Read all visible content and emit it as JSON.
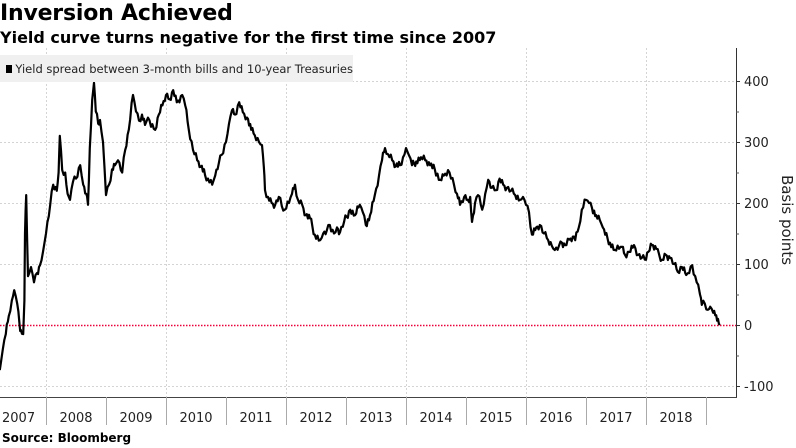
{
  "title": "Inversion Achieved",
  "subtitle": "Yield curve turns negative for the first time since 2007",
  "source": "Source: Bloomberg",
  "colors": {
    "series": "#000000",
    "zero_line": "#e8003a",
    "grid": "#d4d4d4",
    "legend_bg": "#f0f0f0"
  },
  "chart_data": {
    "type": "line",
    "title": "Inversion Achieved",
    "subtitle": "Yield curve turns negative for the first time since 2007",
    "xlabel": "",
    "ylabel": "Basis points",
    "ylim": [
      -125,
      440
    ],
    "xlim": [
      2007.23,
      2019.83
    ],
    "y_ticks": [
      "400",
      "300",
      "200",
      "100",
      "0",
      "-100"
    ],
    "y_tick_values": [
      400,
      300,
      200,
      100,
      0,
      -100
    ],
    "x_tick_labels": [
      "2007",
      "2008",
      "2009",
      "2010",
      "2011",
      "2012",
      "2013",
      "2014",
      "2015",
      "2016",
      "2017",
      "2018"
    ],
    "grid": true,
    "legend": "top-left",
    "reference_line": {
      "value": 0,
      "style": "dotted",
      "color": "#e8003a"
    },
    "series": [
      {
        "name": "Yield spread between 3-month bills and 10-year Treasuries",
        "x": [
          2007.23,
          2007.28,
          2007.33,
          2007.38,
          2007.43,
          2007.47,
          2007.52,
          2007.56,
          2007.58,
          2007.62,
          2007.64,
          2007.65,
          2007.67,
          2007.7,
          2007.75,
          2007.8,
          2007.85,
          2007.9,
          2007.95,
          2008.0,
          2008.07,
          2008.12,
          2008.18,
          2008.21,
          2008.23,
          2008.27,
          2008.32,
          2008.36,
          2008.4,
          2008.45,
          2008.5,
          2008.57,
          2008.62,
          2008.67,
          2008.7,
          2008.73,
          2008.77,
          2008.8,
          2008.83,
          2008.87,
          2008.9,
          2008.95,
          2009.0,
          2009.05,
          2009.1,
          2009.15,
          2009.2,
          2009.27,
          2009.32,
          2009.38,
          2009.45,
          2009.5,
          2009.55,
          2009.6,
          2009.65,
          2009.7,
          2009.75,
          2009.82,
          2009.88,
          2009.94,
          2010.0,
          2010.06,
          2010.12,
          2010.18,
          2010.27,
          2010.32,
          2010.38,
          2010.45,
          2010.52,
          2010.58,
          2010.65,
          2010.7,
          2010.77,
          2010.82,
          2010.88,
          2010.93,
          2011.0,
          2011.05,
          2011.1,
          2011.15,
          2011.22,
          2011.28,
          2011.35,
          2011.42,
          2011.48,
          2011.55,
          2011.6,
          2011.63,
          2011.65,
          2011.7,
          2011.76,
          2011.82,
          2011.88,
          2011.93,
          2011.98,
          2012.05,
          2012.1,
          2012.15,
          2012.2,
          2012.27,
          2012.33,
          2012.4,
          2012.48,
          2012.57,
          2012.62,
          2012.68,
          2012.73,
          2012.8,
          2012.85,
          2012.9,
          2012.97,
          2013.07,
          2013.15,
          2013.23,
          2013.28,
          2013.33,
          2013.4,
          2013.48,
          2013.55,
          2013.6,
          2013.65,
          2013.7,
          2013.77,
          2013.83,
          2013.9,
          2013.95,
          2014.0,
          2014.05,
          2014.1,
          2014.17,
          2014.25,
          2014.32,
          2014.4,
          2014.48,
          2014.57,
          2014.63,
          2014.7,
          2014.75,
          2014.8,
          2014.85,
          2014.9,
          2014.97,
          2015.03,
          2015.07,
          2015.1,
          2015.15,
          2015.2,
          2015.27,
          2015.32,
          2015.37,
          2015.43,
          2015.5,
          2015.56,
          2015.62,
          2015.68,
          2015.75,
          2015.82,
          2015.9,
          2015.95,
          2016.0,
          2016.05,
          2016.1,
          2016.17,
          2016.23,
          2016.3,
          2016.37,
          2016.43,
          2016.48,
          2016.55,
          2016.6,
          2016.65,
          2016.72,
          2016.78,
          2016.82,
          2016.88,
          2016.93,
          2017.0,
          2017.05,
          2017.1,
          2017.17,
          2017.23,
          2017.28,
          2017.32,
          2017.4,
          2017.48,
          2017.55,
          2017.6,
          2017.65,
          2017.72,
          2017.8,
          2017.87,
          2017.93,
          2017.98,
          2018.04,
          2018.1,
          2018.17,
          2018.22,
          2018.27,
          2018.33,
          2018.4,
          2018.47,
          2018.53,
          2018.6,
          2018.67,
          2018.72,
          2018.77,
          2018.82,
          2018.87,
          2018.9,
          2018.93,
          2018.98,
          2019.03,
          2019.07,
          2019.12,
          2019.17,
          2019.2,
          2019.23
        ],
        "y": [
          -74,
          -40,
          -15,
          15,
          40,
          57,
          35,
          0,
          -8,
          -15,
          40,
          150,
          213,
          80,
          95,
          70,
          85,
          98,
          120,
          150,
          197,
          230,
          220,
          250,
          310,
          254,
          250,
          215,
          205,
          235,
          240,
          262,
          230,
          215,
          197,
          290,
          369,
          397,
          350,
          330,
          336,
          300,
          213,
          230,
          255,
          262,
          270,
          250,
          287,
          320,
          377,
          350,
          335,
          345,
          328,
          340,
          325,
          320,
          345,
          360,
          377,
          370,
          385,
          365,
          377,
          360,
          320,
          287,
          270,
          260,
          246,
          240,
          230,
          245,
          265,
          279,
          300,
          330,
          352,
          345,
          365,
          349,
          340,
          320,
          311,
          300,
          295,
          260,
          221,
          210,
          200,
          197,
          210,
          195,
          189,
          200,
          215,
          230,
          205,
          197,
          180,
          175,
          148,
          139,
          150,
          155,
          164,
          150,
          160,
          152,
          170,
          189,
          180,
          197,
          185,
          164,
          180,
          213,
          245,
          270,
          290,
          280,
          270,
          260,
          262,
          275,
          290,
          278,
          262,
          268,
          275,
          270,
          262,
          255,
          238,
          245,
          254,
          240,
          230,
          215,
          197,
          210,
          205,
          210,
          169,
          200,
          213,
          189,
          215,
          238,
          225,
          221,
          240,
          230,
          225,
          220,
          213,
          205,
          210,
          197,
          185,
          148,
          160,
          164,
          150,
          139,
          130,
          123,
          130,
          135,
          131,
          140,
          145,
          139,
          160,
          189,
          205,
          200,
          192,
          180,
          172,
          160,
          148,
          135,
          123,
          125,
          128,
          115,
          120,
          131,
          115,
          110,
          107,
          120,
          131,
          125,
          115,
          107,
          115,
          110,
          100,
          87,
          95,
          82,
          85,
          98,
          80,
          66,
          50,
          33,
          35,
          25,
          30,
          20,
          16,
          10,
          0
        ]
      }
    ]
  }
}
